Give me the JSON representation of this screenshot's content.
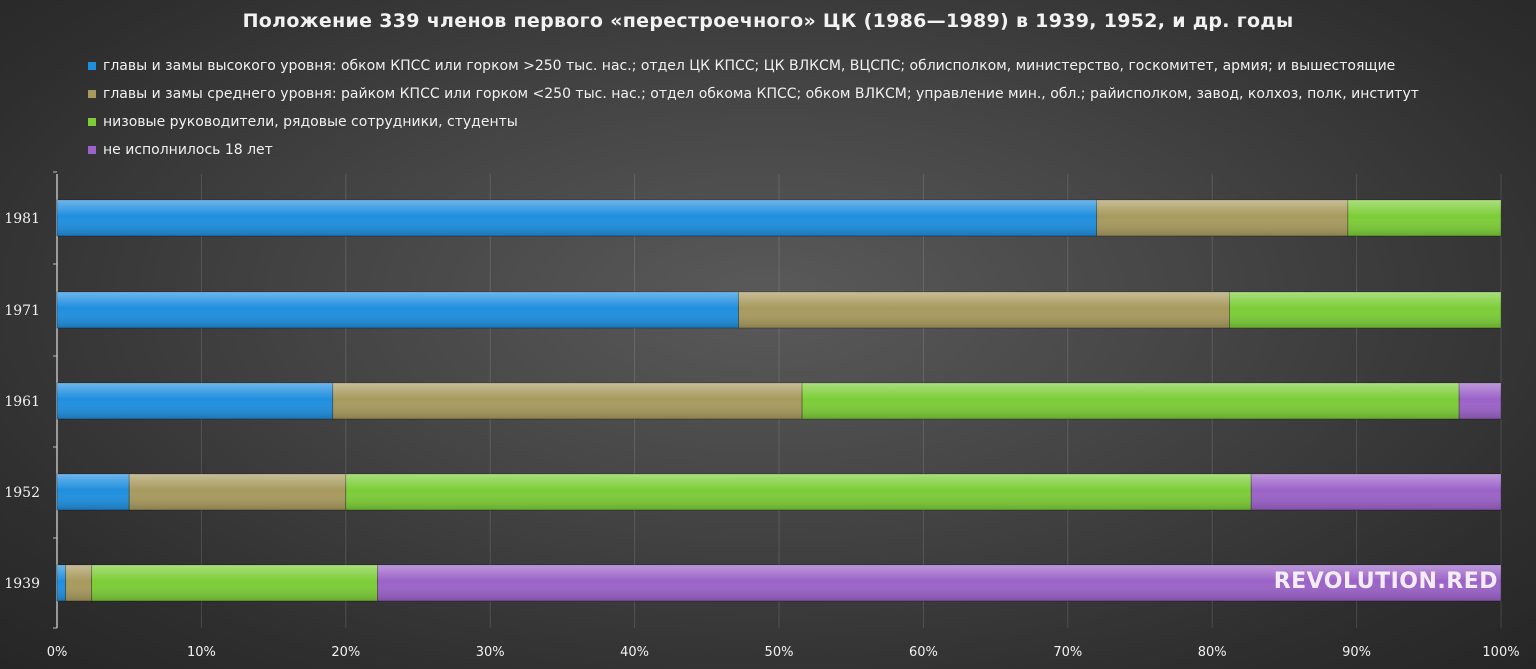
{
  "chart_data": {
    "type": "bar",
    "orientation": "horizontal",
    "stacked": "percent",
    "title": "Положение 339 членов первого «перестроечного» ЦК (1986—1989) в 1939, 1952, и др. годы",
    "categories": [
      "1981",
      "1971",
      "1961",
      "1952",
      "1939"
    ],
    "series": [
      {
        "name": "главы и замы высокого уровня: обком КПСС или горком >250 тыс. нас.; отдел ЦК КПСС; ЦК ВЛКСМ, ВЦСПС; облисполком, министерство, госкомитет, армия; и вышестоящие",
        "color": "#1f8fdf",
        "values": [
          72.0,
          47.2,
          19.1,
          5.0,
          0.6
        ]
      },
      {
        "name": "главы и замы среднего уровня: райком КПСС или горком <250 тыс. нас.; отдел обкома КПСС; обком ВЛКСМ; управление мин., обл.; райисполком, завод, колхоз, полк, институт",
        "color": "#a89a5e",
        "values": [
          17.4,
          34.0,
          32.5,
          15.0,
          1.8
        ]
      },
      {
        "name": "низовые руководители, рядовые сотрудники, студенты",
        "color": "#7ccd37",
        "values": [
          10.6,
          18.8,
          45.5,
          62.7,
          19.8
        ]
      },
      {
        "name": "не исполнилось 18 лет",
        "color": "#9b62c8",
        "values": [
          0.0,
          0.0,
          2.9,
          17.3,
          77.8
        ]
      }
    ],
    "xlim": [
      0,
      100
    ],
    "xticks": [
      "0%",
      "10%",
      "20%",
      "30%",
      "40%",
      "50%",
      "60%",
      "70%",
      "80%",
      "90%",
      "100%"
    ],
    "grid": "vertical",
    "legend_position": "top-left"
  },
  "watermark": "REVOLUTION.RED"
}
